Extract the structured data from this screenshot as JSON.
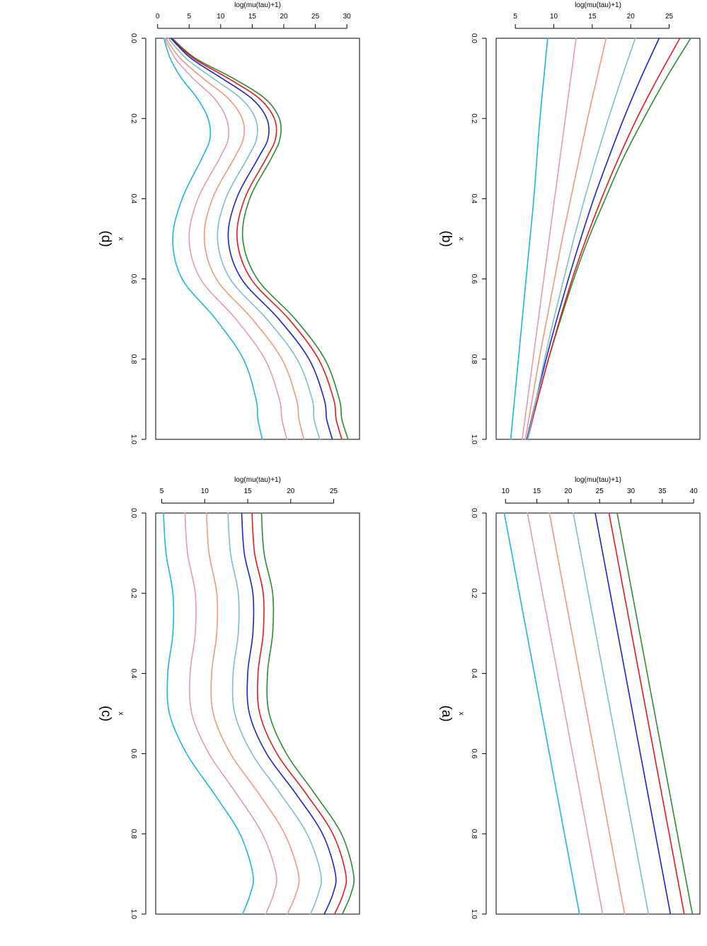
{
  "colors": {
    "series": [
      "#2e8b2e",
      "#e8191c",
      "#1a23d6",
      "#7fbdca",
      "#f4977a",
      "#e79aa8",
      "#1cb5ea"
    ]
  },
  "chart_data": [
    {
      "id": "a",
      "type": "line",
      "panel_label": "(a)",
      "xlabel": "x",
      "ylabel": "log(mu(tau)+1)",
      "xlim": [
        0,
        1
      ],
      "ylim": [
        8.5,
        41
      ],
      "xticks": [
        "0.0",
        "0.2",
        "0.4",
        "0.6",
        "0.8",
        "1.0"
      ],
      "yticks": [
        "10",
        "15",
        "20",
        "25",
        "30",
        "35",
        "40"
      ],
      "x": [
        0.0,
        1.0
      ],
      "series": [
        {
          "values": [
            27.8,
            39.8
          ]
        },
        {
          "values": [
            26.5,
            38.5
          ]
        },
        {
          "values": [
            24.3,
            36.3
          ]
        },
        {
          "values": [
            20.8,
            32.8
          ]
        },
        {
          "values": [
            17.0,
            29.0
          ]
        },
        {
          "values": [
            13.5,
            25.5
          ]
        },
        {
          "values": [
            9.8,
            21.8
          ]
        }
      ]
    },
    {
      "id": "b",
      "type": "line",
      "panel_label": "(b)",
      "xlabel": "x",
      "ylabel": "log(mu(tau)+1)",
      "xlim": [
        0,
        1
      ],
      "ylim": [
        2.5,
        29
      ],
      "xticks": [
        "0.0",
        "0.2",
        "0.4",
        "0.6",
        "0.8",
        "1.0"
      ],
      "yticks": [
        "5",
        "10",
        "15",
        "20",
        "25"
      ],
      "x": [
        0.0,
        0.1,
        0.2,
        0.3,
        0.4,
        0.5,
        0.6,
        0.7,
        0.8,
        0.9,
        1.0
      ],
      "series": [
        {
          "values": [
            27.8,
            24.6,
            21.7,
            19.0,
            16.7,
            14.5,
            12.6,
            10.9,
            9.3,
            7.9,
            6.6
          ]
        },
        {
          "values": [
            26.4,
            23.5,
            20.8,
            18.4,
            16.2,
            14.2,
            12.4,
            10.8,
            9.3,
            7.9,
            6.6
          ]
        },
        {
          "values": [
            23.7,
            21.3,
            19.1,
            17.1,
            15.2,
            13.5,
            11.9,
            10.4,
            9.0,
            7.7,
            6.5
          ]
        },
        {
          "values": [
            20.6,
            18.8,
            17.1,
            15.5,
            14.0,
            12.6,
            11.3,
            10.0,
            8.8,
            7.7,
            6.6
          ]
        },
        {
          "values": [
            16.8,
            15.6,
            14.4,
            13.3,
            12.2,
            11.1,
            10.1,
            9.1,
            8.1,
            7.2,
            6.3
          ]
        },
        {
          "values": [
            12.9,
            12.2,
            11.5,
            10.8,
            10.1,
            9.4,
            8.7,
            8.0,
            7.3,
            6.6,
            5.9
          ]
        },
        {
          "values": [
            9.2,
            8.7,
            8.2,
            7.8,
            7.4,
            6.9,
            6.4,
            5.9,
            5.4,
            4.9,
            4.4
          ]
        }
      ]
    },
    {
      "id": "c",
      "type": "line",
      "panel_label": "(c)",
      "xlabel": "x",
      "ylabel": "log(mu(tau)+1)",
      "xlim": [
        0,
        1
      ],
      "ylim": [
        4.3,
        28
      ],
      "xticks": [
        "0.0",
        "0.2",
        "0.4",
        "0.6",
        "0.8",
        "1.0"
      ],
      "yticks": [
        "5",
        "10",
        "15",
        "20",
        "25"
      ],
      "x": [
        0.0,
        0.1,
        0.2,
        0.3,
        0.4,
        0.5,
        0.6,
        0.7,
        0.8,
        0.9,
        0.95,
        1.0
      ],
      "series": [
        {
          "values": [
            16.6,
            16.9,
            17.9,
            17.9,
            17.3,
            17.5,
            19.5,
            22.8,
            25.9,
            27.3,
            27.0,
            26.0
          ]
        },
        {
          "values": [
            15.5,
            15.8,
            16.8,
            16.8,
            16.2,
            16.4,
            18.4,
            21.8,
            24.9,
            26.4,
            26.1,
            25.1
          ]
        },
        {
          "values": [
            14.3,
            14.6,
            15.6,
            15.6,
            15.0,
            15.2,
            17.2,
            20.6,
            23.7,
            25.2,
            24.9,
            23.9
          ]
        },
        {
          "values": [
            12.7,
            13.0,
            13.9,
            13.9,
            13.3,
            13.5,
            15.5,
            18.8,
            21.9,
            23.5,
            23.2,
            22.3
          ]
        },
        {
          "values": [
            10.2,
            10.5,
            11.4,
            11.4,
            10.8,
            11.0,
            13.0,
            16.3,
            19.3,
            20.9,
            20.6,
            19.6
          ]
        },
        {
          "values": [
            7.7,
            8.0,
            8.9,
            8.9,
            8.3,
            8.5,
            10.5,
            13.7,
            16.7,
            18.3,
            18.0,
            17.1
          ]
        },
        {
          "values": [
            5.2,
            5.5,
            6.3,
            6.3,
            5.7,
            5.9,
            7.9,
            11.1,
            14.1,
            15.6,
            15.3,
            14.4
          ]
        }
      ]
    },
    {
      "id": "d",
      "type": "line",
      "panel_label": "(d)",
      "xlabel": "x",
      "ylabel": "log(mu(tau)+1)",
      "xlim": [
        0,
        1
      ],
      "ylim": [
        -0.3,
        32
      ],
      "xticks": [
        "0.0",
        "0.2",
        "0.4",
        "0.6",
        "0.8",
        "1.0"
      ],
      "yticks": [
        "0",
        "5",
        "10",
        "15",
        "20",
        "25",
        "30"
      ],
      "x": [
        0.0,
        0.05,
        0.1,
        0.15,
        0.2,
        0.25,
        0.3,
        0.4,
        0.5,
        0.6,
        0.7,
        0.8,
        0.9,
        0.95,
        1.0
      ],
      "series": [
        {
          "values": [
            2.3,
            6.0,
            12.0,
            17.0,
            19.3,
            19.4,
            18.0,
            14.6,
            13.5,
            15.8,
            21.8,
            26.5,
            28.8,
            29.2,
            30.2
          ]
        },
        {
          "values": [
            2.2,
            5.7,
            11.2,
            16.1,
            18.5,
            18.7,
            17.2,
            13.8,
            12.6,
            14.8,
            20.8,
            25.5,
            27.9,
            28.3,
            29.2
          ]
        },
        {
          "values": [
            2.1,
            5.3,
            10.2,
            14.9,
            17.3,
            17.5,
            15.9,
            12.5,
            11.2,
            13.3,
            19.2,
            24.0,
            26.4,
            26.8,
            27.7
          ]
        },
        {
          "values": [
            1.7,
            4.5,
            8.8,
            13.2,
            15.5,
            15.7,
            14.2,
            10.8,
            9.5,
            11.5,
            17.3,
            22.1,
            24.5,
            24.8,
            25.7
          ]
        },
        {
          "values": [
            1.3,
            3.6,
            7.2,
            11.2,
            13.4,
            13.6,
            12.1,
            8.7,
            7.4,
            9.3,
            15.0,
            19.7,
            22.0,
            22.4,
            23.2
          ]
        },
        {
          "values": [
            1.1,
            2.8,
            5.6,
            9.0,
            10.9,
            11.2,
            9.8,
            6.4,
            5.0,
            6.8,
            12.4,
            17.0,
            19.3,
            19.7,
            20.5
          ]
        },
        {
          "values": [
            1.0,
            2.0,
            3.8,
            6.3,
            8.0,
            8.3,
            7.0,
            3.9,
            2.4,
            3.9,
            9.2,
            13.6,
            15.6,
            15.9,
            16.6
          ]
        }
      ]
    }
  ]
}
